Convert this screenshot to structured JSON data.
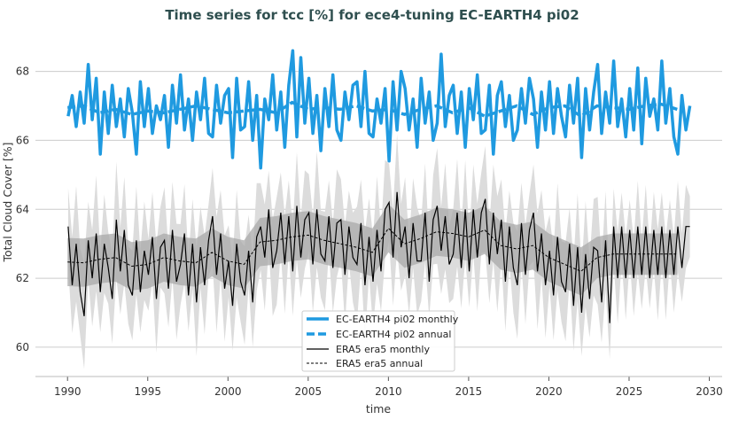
{
  "chart_data": {
    "type": "line",
    "title": "Time series for tcc [%] for ece4-tuning EC-EARTH4 pi02",
    "xlabel": "time",
    "ylabel": "Total Cloud Cover [%]",
    "xlim": [
      1988.0,
      2030.8
    ],
    "ylim": [
      59.15,
      69.3
    ],
    "xticks": [
      1990,
      1995,
      2000,
      2005,
      2010,
      2015,
      2020,
      2025,
      2030
    ],
    "yticks": [
      60,
      62,
      64,
      66,
      68
    ],
    "grid": "horizontal",
    "legend_position": "bottom-center",
    "colors": {
      "model": "#1f9ae0",
      "obs": "#000000",
      "obs_monthly_band": "#dcdcdc",
      "obs_annual_band": "#a9a9a9",
      "title": "#2f4f4f"
    },
    "annual_years": [
      1990,
      1991,
      1992,
      1993,
      1994,
      1995,
      1996,
      1997,
      1998,
      1999,
      2000,
      2001,
      2002,
      2003,
      2004,
      2005,
      2006,
      2007,
      2008,
      2009,
      2010,
      2011,
      2012,
      2013,
      2014,
      2015,
      2016,
      2017,
      2018,
      2019,
      2020,
      2021,
      2022,
      2023,
      2024,
      2025,
      2026,
      2027,
      2028
    ],
    "monthly_sampling": "quarterly samples per year, 1990-2028",
    "series": [
      {
        "name": "EC-EARTH4 pi02 monthly",
        "style": "solid-thick",
        "color": "#1f9ae0",
        "values": [
          66.7,
          67.3,
          66.4,
          67.4,
          66.5,
          68.2,
          66.6,
          67.8,
          65.6,
          67.4,
          66.2,
          67.6,
          66.4,
          67.2,
          66.1,
          67.5,
          66.8,
          65.6,
          67.7,
          66.4,
          67.5,
          66.2,
          67.0,
          66.6,
          67.3,
          65.8,
          67.6,
          66.5,
          67.9,
          66.3,
          67.2,
          66.0,
          67.4,
          66.6,
          67.8,
          66.2,
          66.1,
          67.6,
          66.5,
          67.3,
          67.5,
          65.5,
          67.8,
          66.3,
          66.4,
          67.7,
          66.0,
          67.3,
          65.2,
          67.2,
          66.6,
          67.9,
          66.3,
          67.4,
          65.8,
          67.6,
          68.6,
          66.1,
          68.4,
          66.5,
          67.8,
          66.2,
          67.3,
          65.7,
          67.5,
          66.4,
          67.9,
          66.3,
          66.0,
          67.4,
          66.6,
          67.6,
          67.7,
          66.4,
          68.0,
          66.2,
          66.1,
          67.2,
          66.5,
          67.5,
          65.4,
          67.7,
          66.3,
          68.0,
          67.5,
          66.3,
          67.2,
          65.8,
          67.8,
          66.5,
          67.4,
          66.0,
          66.5,
          68.5,
          66.4,
          67.3,
          67.6,
          66.2,
          67.4,
          65.8,
          67.5,
          66.6,
          67.9,
          66.2,
          66.3,
          67.6,
          65.6,
          67.3,
          67.7,
          66.4,
          67.3,
          66.0,
          66.3,
          67.5,
          66.5,
          67.8,
          67.2,
          65.8,
          67.4,
          66.3,
          67.7,
          66.2,
          67.5,
          66.7,
          66.1,
          67.6,
          66.5,
          67.8,
          65.5,
          67.5,
          66.3,
          67.4,
          68.2,
          66.2,
          67.4,
          66.5,
          68.3,
          66.4,
          67.2,
          66.1,
          67.5,
          66.3,
          68.1,
          65.9,
          67.8,
          66.7,
          67.2,
          66.3,
          68.3,
          66.5,
          67.5,
          66.1,
          65.6,
          67.3,
          66.3,
          67.0
        ]
      },
      {
        "name": "EC-EARTH4 pi02 annual",
        "style": "dashed-thick",
        "color": "#1f9ae0",
        "values": [
          66.95,
          67.0,
          66.8,
          66.9,
          66.75,
          66.85,
          66.8,
          66.9,
          67.0,
          66.9,
          66.8,
          66.85,
          66.9,
          66.8,
          67.1,
          66.9,
          66.95,
          66.9,
          67.0,
          66.85,
          66.9,
          66.75,
          66.9,
          67.0,
          66.8,
          66.95,
          66.7,
          66.85,
          67.0,
          66.75,
          66.95,
          67.0,
          66.7,
          67.0,
          66.95,
          66.9,
          67.0,
          67.05,
          66.9
        ]
      },
      {
        "name": "ERA5 era5 monthly",
        "style": "solid-thin",
        "color": "#000000",
        "values": [
          63.5,
          61.8,
          63.0,
          61.6,
          60.9,
          63.1,
          62.0,
          63.3,
          61.6,
          63.0,
          62.3,
          61.4,
          63.7,
          62.2,
          63.4,
          61.8,
          61.5,
          63.1,
          61.6,
          62.8,
          62.1,
          63.2,
          61.4,
          62.9,
          63.1,
          61.7,
          63.4,
          61.9,
          62.4,
          63.3,
          61.5,
          63.0,
          61.3,
          62.9,
          61.8,
          63.1,
          63.8,
          62.1,
          63.3,
          61.7,
          62.5,
          61.2,
          63.0,
          61.9,
          61.5,
          62.8,
          61.3,
          63.2,
          63.5,
          62.6,
          64.0,
          62.3,
          62.8,
          63.9,
          62.4,
          63.8,
          62.2,
          64.1,
          62.6,
          63.7,
          63.9,
          62.4,
          64.0,
          62.7,
          62.5,
          63.8,
          62.3,
          63.6,
          63.7,
          62.1,
          63.5,
          62.6,
          62.4,
          63.6,
          61.8,
          63.2,
          61.9,
          63.4,
          62.2,
          64.0,
          64.2,
          62.6,
          64.5,
          62.9,
          63.5,
          62.0,
          63.6,
          62.5,
          62.5,
          63.9,
          61.9,
          63.7,
          64.1,
          62.8,
          63.8,
          62.4,
          62.7,
          63.9,
          62.3,
          64.0,
          62.2,
          64.0,
          62.6,
          63.9,
          64.3,
          62.4,
          63.9,
          62.7,
          63.7,
          61.9,
          63.5,
          62.3,
          61.8,
          63.6,
          62.1,
          63.4,
          63.9,
          62.2,
          63.3,
          61.8,
          62.8,
          61.5,
          63.2,
          61.9,
          61.6,
          63.0,
          61.2,
          62.9,
          61.0,
          62.7,
          61.4,
          62.9,
          62.8,
          61.3,
          63.1,
          60.7,
          63.5,
          62.0,
          63.5,
          62.0,
          63.4,
          62.0,
          63.5,
          62.1,
          63.5,
          62.0,
          63.4,
          62.1,
          63.5,
          62.0,
          63.4,
          62.1,
          63.5,
          62.3,
          63.5,
          63.5
        ],
        "band_halfwidth": [
          1.4,
          1.4,
          1.3,
          1.4,
          1.3,
          1.3,
          1.4,
          1.3,
          1.3,
          1.4,
          1.3,
          1.3,
          1.4,
          1.3,
          1.3,
          1.4,
          1.3,
          1.3,
          1.4,
          1.3,
          1.4,
          1.3,
          1.3,
          1.4,
          1.3,
          1.3,
          1.4,
          1.3,
          1.3,
          1.4,
          1.3,
          1.3,
          1.4,
          1.3,
          1.1,
          1.1,
          1.1,
          1.1,
          1.1
        ]
      },
      {
        "name": "ERA5 era5 annual",
        "style": "dashed-thin",
        "color": "#000000",
        "values": [
          62.47,
          62.45,
          62.55,
          62.6,
          62.35,
          62.4,
          62.6,
          62.5,
          62.45,
          62.75,
          62.5,
          62.4,
          63.05,
          63.1,
          63.2,
          63.25,
          63.1,
          63.0,
          62.9,
          62.75,
          63.45,
          63.0,
          63.15,
          63.35,
          63.3,
          63.2,
          63.4,
          62.95,
          62.85,
          62.95,
          62.6,
          62.4,
          62.2,
          62.6,
          62.7,
          62.7,
          62.7,
          62.7,
          62.7
        ],
        "band_halfwidth": [
          0.7,
          0.7,
          0.7,
          0.7,
          0.7,
          0.7,
          0.7,
          0.7,
          0.7,
          0.7,
          0.7,
          0.7,
          0.7,
          0.7,
          0.7,
          0.7,
          0.7,
          0.7,
          0.7,
          0.7,
          0.7,
          0.7,
          0.7,
          0.7,
          0.7,
          0.7,
          0.7,
          0.7,
          0.7,
          0.7,
          0.7,
          0.7,
          0.7,
          0.6,
          0.6,
          0.6,
          0.6,
          0.6,
          0.6
        ]
      }
    ]
  }
}
